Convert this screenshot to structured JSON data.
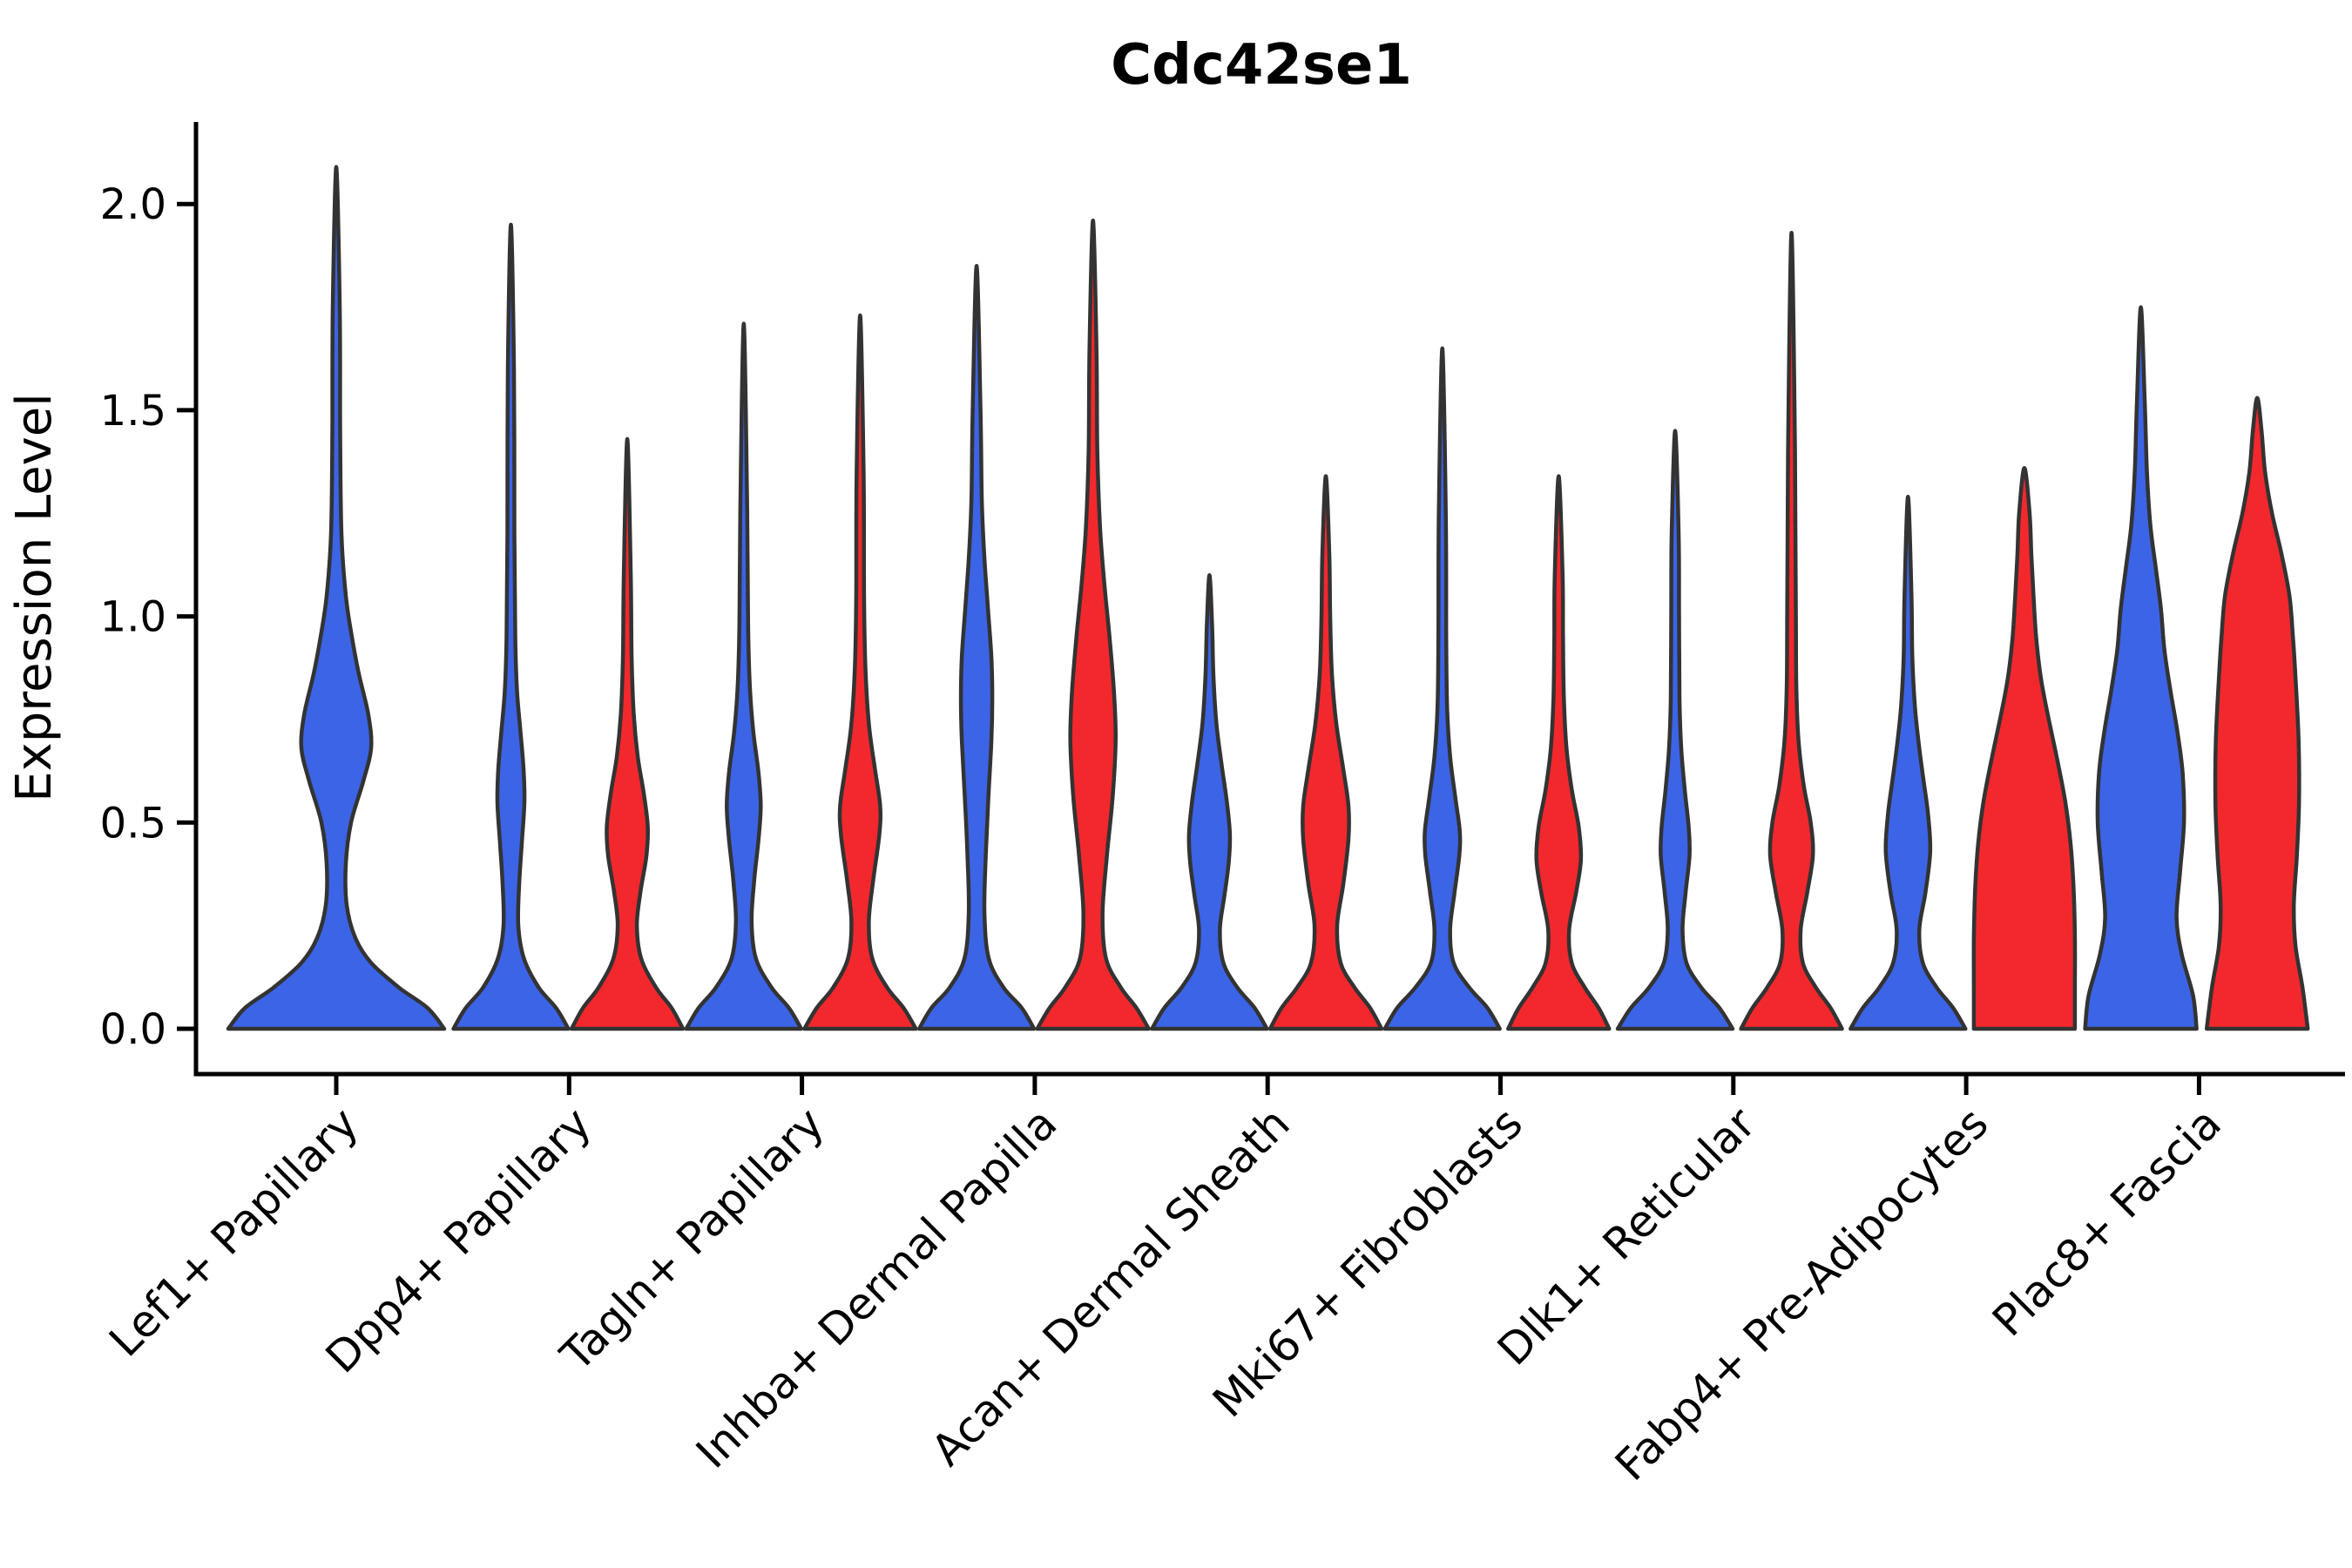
{
  "title": "Cdc42se1",
  "ylabel": "Expression Level",
  "chart_data": {
    "type": "violin",
    "title": "Cdc42se1",
    "xlabel": "",
    "ylabel": "Expression Level",
    "ylim": [
      -0.07,
      2.2
    ],
    "yticks": [
      "0.0",
      "0.5",
      "1.0",
      "1.5",
      "2.0"
    ],
    "ytick_values": [
      0.0,
      0.5,
      1.0,
      1.5,
      2.0
    ],
    "x_tick_rotation": 45,
    "grid": false,
    "legend": "none",
    "colors": {
      "blue": "#3C64E6",
      "red": "#F3282D",
      "edge": "#333333",
      "axis": "#000000"
    },
    "categories": [
      "Lef1+ Papillary",
      "Dpp4+ Papillary",
      "Tagln+ Papillary",
      "Inhba+ Dermal Papilla",
      "Acan+ Dermal Sheath",
      "Mki67+ Fibroblasts",
      "Dlk1+ Reticular",
      "Fabp4+ Pre-Adipocytes",
      "Plac8+ Fascia"
    ],
    "violins": [
      {
        "category": "Lef1+ Papillary",
        "cat_index": 0,
        "side": "center",
        "color_key": "blue",
        "max_value": 2.09,
        "profile": [
          [
            0,
            124
          ],
          [
            0.05,
            105
          ],
          [
            0.1,
            72
          ],
          [
            0.16,
            40
          ],
          [
            0.22,
            22
          ],
          [
            0.3,
            12
          ],
          [
            0.4,
            11
          ],
          [
            0.5,
            17
          ],
          [
            0.6,
            31
          ],
          [
            0.68,
            40
          ],
          [
            0.76,
            37
          ],
          [
            0.86,
            26
          ],
          [
            0.95,
            18
          ],
          [
            1.05,
            11
          ],
          [
            1.2,
            6
          ],
          [
            1.45,
            4.5
          ],
          [
            1.75,
            4
          ],
          [
            2.09,
            0
          ]
        ]
      },
      {
        "category": "Dpp4+ Papillary",
        "cat_index": 1,
        "side": "left",
        "color_key": "blue",
        "max_value": 1.95,
        "profile": [
          [
            0,
            66
          ],
          [
            0.05,
            52
          ],
          [
            0.1,
            32
          ],
          [
            0.17,
            15
          ],
          [
            0.25,
            8.5
          ],
          [
            0.35,
            9.5
          ],
          [
            0.45,
            12.5
          ],
          [
            0.55,
            15.5
          ],
          [
            0.63,
            14.5
          ],
          [
            0.72,
            11
          ],
          [
            0.82,
            7
          ],
          [
            0.95,
            5
          ],
          [
            1.2,
            4
          ],
          [
            1.6,
            3.5
          ],
          [
            1.95,
            0
          ]
        ]
      },
      {
        "category": "Dpp4+ Papillary",
        "cat_index": 1,
        "side": "right",
        "color_key": "red",
        "max_value": 1.43,
        "profile": [
          [
            0,
            64
          ],
          [
            0.05,
            51
          ],
          [
            0.1,
            33
          ],
          [
            0.17,
            16
          ],
          [
            0.25,
            11
          ],
          [
            0.33,
            15
          ],
          [
            0.42,
            22
          ],
          [
            0.49,
            23.5
          ],
          [
            0.57,
            19
          ],
          [
            0.66,
            12
          ],
          [
            0.76,
            7.5
          ],
          [
            0.9,
            5
          ],
          [
            1.1,
            4
          ],
          [
            1.43,
            0
          ]
        ]
      },
      {
        "category": "Tagln+ Papillary",
        "cat_index": 2,
        "side": "left",
        "color_key": "blue",
        "max_value": 1.71,
        "profile": [
          [
            0,
            66
          ],
          [
            0.05,
            52
          ],
          [
            0.1,
            32
          ],
          [
            0.17,
            14
          ],
          [
            0.26,
            9
          ],
          [
            0.36,
            12
          ],
          [
            0.46,
            17
          ],
          [
            0.54,
            19.5
          ],
          [
            0.62,
            17
          ],
          [
            0.72,
            11
          ],
          [
            0.83,
            7
          ],
          [
            0.98,
            5
          ],
          [
            1.25,
            4
          ],
          [
            1.71,
            0
          ]
        ]
      },
      {
        "category": "Tagln+ Papillary",
        "cat_index": 2,
        "side": "right",
        "color_key": "red",
        "max_value": 1.73,
        "profile": [
          [
            0,
            64
          ],
          [
            0.05,
            50
          ],
          [
            0.1,
            31
          ],
          [
            0.17,
            14
          ],
          [
            0.26,
            10
          ],
          [
            0.36,
            15
          ],
          [
            0.47,
            22
          ],
          [
            0.54,
            23
          ],
          [
            0.63,
            17
          ],
          [
            0.74,
            10
          ],
          [
            0.88,
            6
          ],
          [
            1.05,
            4.5
          ],
          [
            1.35,
            4
          ],
          [
            1.73,
            0
          ]
        ]
      },
      {
        "category": "Inhba+ Dermal Papilla",
        "cat_index": 3,
        "side": "left",
        "color_key": "blue",
        "max_value": 1.85,
        "profile": [
          [
            0,
            66
          ],
          [
            0.05,
            52
          ],
          [
            0.1,
            31
          ],
          [
            0.17,
            14
          ],
          [
            0.28,
            9
          ],
          [
            0.42,
            10.5
          ],
          [
            0.56,
            13.5
          ],
          [
            0.7,
            17
          ],
          [
            0.8,
            18
          ],
          [
            0.9,
            17
          ],
          [
            1.02,
            13
          ],
          [
            1.14,
            9
          ],
          [
            1.28,
            6
          ],
          [
            1.5,
            4.5
          ],
          [
            1.85,
            0
          ]
        ]
      },
      {
        "category": "Inhba+ Dermal Papilla",
        "cat_index": 3,
        "side": "right",
        "color_key": "red",
        "max_value": 1.96,
        "profile": [
          [
            0,
            64
          ],
          [
            0.05,
            50
          ],
          [
            0.1,
            32
          ],
          [
            0.17,
            15
          ],
          [
            0.28,
            11
          ],
          [
            0.42,
            16
          ],
          [
            0.56,
            22.5
          ],
          [
            0.7,
            26
          ],
          [
            0.82,
            24
          ],
          [
            0.95,
            19
          ],
          [
            1.08,
            13
          ],
          [
            1.22,
            8
          ],
          [
            1.4,
            5
          ],
          [
            1.65,
            4
          ],
          [
            1.96,
            0
          ]
        ]
      },
      {
        "category": "Acan+ Dermal Sheath",
        "cat_index": 4,
        "side": "left",
        "color_key": "blue",
        "max_value": 1.1,
        "profile": [
          [
            0,
            66
          ],
          [
            0.05,
            52
          ],
          [
            0.1,
            32
          ],
          [
            0.16,
            16
          ],
          [
            0.24,
            12
          ],
          [
            0.32,
            17
          ],
          [
            0.4,
            22
          ],
          [
            0.47,
            23.5
          ],
          [
            0.55,
            20
          ],
          [
            0.64,
            14
          ],
          [
            0.74,
            8
          ],
          [
            0.86,
            4.5
          ],
          [
            0.98,
            3
          ],
          [
            1.1,
            0
          ]
        ]
      },
      {
        "category": "Acan+ Dermal Sheath",
        "cat_index": 4,
        "side": "right",
        "color_key": "red",
        "max_value": 1.34,
        "profile": [
          [
            0,
            64
          ],
          [
            0.05,
            51
          ],
          [
            0.1,
            33
          ],
          [
            0.16,
            17
          ],
          [
            0.25,
            13
          ],
          [
            0.35,
            20
          ],
          [
            0.46,
            26
          ],
          [
            0.54,
            26
          ],
          [
            0.63,
            20
          ],
          [
            0.74,
            12
          ],
          [
            0.86,
            7
          ],
          [
            1.0,
            5
          ],
          [
            1.15,
            4
          ],
          [
            1.34,
            0
          ]
        ]
      },
      {
        "category": "Mki67+ Fibroblasts",
        "cat_index": 5,
        "side": "left",
        "color_key": "blue",
        "max_value": 1.65,
        "profile": [
          [
            0,
            66
          ],
          [
            0.05,
            52
          ],
          [
            0.1,
            31
          ],
          [
            0.16,
            13
          ],
          [
            0.24,
            9
          ],
          [
            0.33,
            14
          ],
          [
            0.42,
            19.5
          ],
          [
            0.48,
            20
          ],
          [
            0.56,
            15
          ],
          [
            0.66,
            9
          ],
          [
            0.78,
            5.5
          ],
          [
            0.95,
            4.5
          ],
          [
            1.25,
            4
          ],
          [
            1.65,
            0
          ]
        ]
      },
      {
        "category": "Mki67+ Fibroblasts",
        "cat_index": 5,
        "side": "right",
        "color_key": "red",
        "max_value": 1.34,
        "profile": [
          [
            0,
            58
          ],
          [
            0.05,
            46
          ],
          [
            0.1,
            30
          ],
          [
            0.16,
            15
          ],
          [
            0.24,
            12
          ],
          [
            0.33,
            20
          ],
          [
            0.41,
            25.5
          ],
          [
            0.49,
            23
          ],
          [
            0.58,
            15
          ],
          [
            0.68,
            9
          ],
          [
            0.8,
            6
          ],
          [
            0.95,
            5
          ],
          [
            1.1,
            4.5
          ],
          [
            1.34,
            0
          ]
        ]
      },
      {
        "category": "Dlk1+ Reticular",
        "cat_index": 6,
        "side": "left",
        "color_key": "blue",
        "max_value": 1.45,
        "profile": [
          [
            0,
            66
          ],
          [
            0.05,
            51
          ],
          [
            0.1,
            30
          ],
          [
            0.16,
            13
          ],
          [
            0.24,
            8.5
          ],
          [
            0.33,
            12
          ],
          [
            0.42,
            16.5
          ],
          [
            0.49,
            15.5
          ],
          [
            0.58,
            11
          ],
          [
            0.68,
            7
          ],
          [
            0.8,
            5
          ],
          [
            1.0,
            4.5
          ],
          [
            1.2,
            4
          ],
          [
            1.45,
            0
          ]
        ]
      },
      {
        "category": "Dlk1+ Reticular",
        "cat_index": 6,
        "side": "right",
        "color_key": "red",
        "max_value": 1.93,
        "profile": [
          [
            0,
            58
          ],
          [
            0.05,
            45
          ],
          [
            0.1,
            28
          ],
          [
            0.16,
            13
          ],
          [
            0.24,
            10.5
          ],
          [
            0.33,
            18
          ],
          [
            0.42,
            24.5
          ],
          [
            0.5,
            22
          ],
          [
            0.59,
            14
          ],
          [
            0.7,
            8
          ],
          [
            0.83,
            5.5
          ],
          [
            1.0,
            5
          ],
          [
            1.4,
            4
          ],
          [
            1.93,
            0
          ]
        ]
      },
      {
        "category": "Fabp4+ Pre-Adipocytes",
        "cat_index": 7,
        "side": "left",
        "color_key": "blue",
        "max_value": 1.29,
        "profile": [
          [
            0,
            66
          ],
          [
            0.05,
            52
          ],
          [
            0.1,
            33
          ],
          [
            0.16,
            17
          ],
          [
            0.24,
            13
          ],
          [
            0.33,
            20
          ],
          [
            0.43,
            25.5
          ],
          [
            0.52,
            23
          ],
          [
            0.6,
            18
          ],
          [
            0.68,
            13
          ],
          [
            0.78,
            8
          ],
          [
            0.9,
            5
          ],
          [
            1.05,
            4
          ],
          [
            1.29,
            0
          ]
        ]
      },
      {
        "category": "Fabp4+ Pre-Adipocytes",
        "cat_index": 7,
        "side": "right",
        "color_key": "red",
        "max_value": 1.36,
        "profile": [
          [
            0,
            58
          ],
          [
            0.1,
            58
          ],
          [
            0.22,
            58
          ],
          [
            0.34,
            56.5
          ],
          [
            0.45,
            53
          ],
          [
            0.55,
            47
          ],
          [
            0.65,
            38
          ],
          [
            0.75,
            28
          ],
          [
            0.85,
            19
          ],
          [
            0.95,
            13.5
          ],
          [
            1.05,
            10.5
          ],
          [
            1.15,
            8
          ],
          [
            1.25,
            6
          ],
          [
            1.36,
            0
          ]
        ]
      },
      {
        "category": "Plac8+ Fascia",
        "cat_index": 8,
        "side": "left",
        "color_key": "blue",
        "max_value": 1.75,
        "profile": [
          [
            0,
            64
          ],
          [
            0.08,
            60
          ],
          [
            0.18,
            47
          ],
          [
            0.27,
            41
          ],
          [
            0.38,
            45
          ],
          [
            0.5,
            49.5
          ],
          [
            0.62,
            48
          ],
          [
            0.72,
            42
          ],
          [
            0.82,
            34
          ],
          [
            0.92,
            27
          ],
          [
            1.02,
            23
          ],
          [
            1.12,
            17
          ],
          [
            1.22,
            11
          ],
          [
            1.35,
            7
          ],
          [
            1.52,
            4.5
          ],
          [
            1.75,
            0
          ]
        ]
      },
      {
        "category": "Plac8+ Fascia",
        "cat_index": 8,
        "side": "right",
        "color_key": "red",
        "max_value": 1.53,
        "profile": [
          [
            0,
            58
          ],
          [
            0.1,
            52
          ],
          [
            0.2,
            44
          ],
          [
            0.3,
            42
          ],
          [
            0.42,
            45.5
          ],
          [
            0.55,
            48
          ],
          [
            0.7,
            47.5
          ],
          [
            0.85,
            44
          ],
          [
            0.95,
            41
          ],
          [
            1.05,
            37
          ],
          [
            1.15,
            28
          ],
          [
            1.25,
            17
          ],
          [
            1.35,
            9
          ],
          [
            1.45,
            5
          ],
          [
            1.53,
            0
          ]
        ]
      }
    ]
  }
}
